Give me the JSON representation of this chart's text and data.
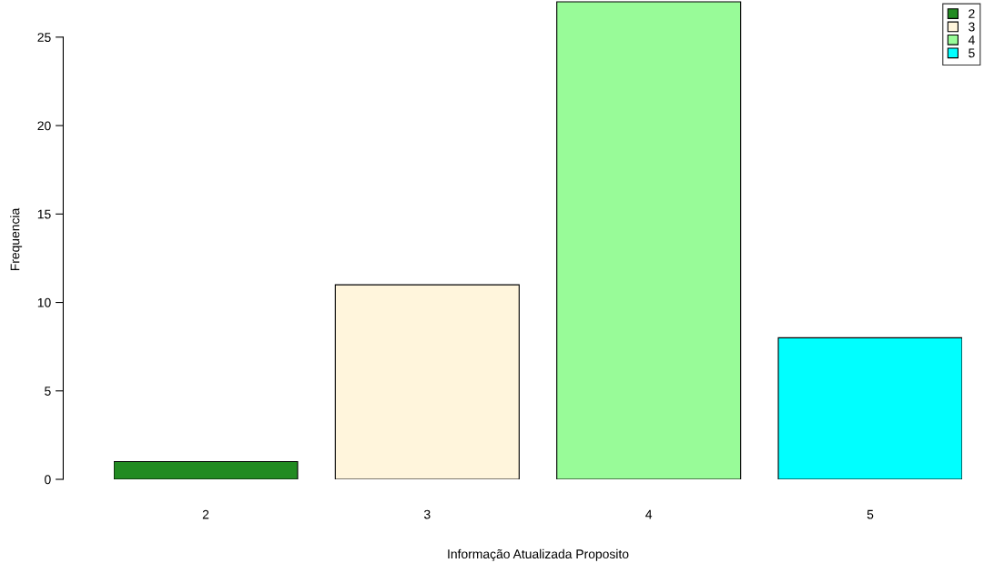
{
  "chart_data": {
    "type": "bar",
    "xlabel": "Informação Atualizada Proposito",
    "ylabel": "Frequencia",
    "categories": [
      "2",
      "3",
      "4",
      "5"
    ],
    "series": [
      {
        "name": "2",
        "color": "#228b22",
        "values": [
          1,
          null,
          null,
          null
        ]
      },
      {
        "name": "3",
        "color": "#fff5dc",
        "values": [
          null,
          11,
          null,
          null
        ]
      },
      {
        "name": "4",
        "color": "#98fb98",
        "values": [
          null,
          null,
          27,
          null
        ]
      },
      {
        "name": "5",
        "color": "#00ffff",
        "values": [
          null,
          null,
          null,
          8
        ]
      }
    ],
    "ylim": [
      0,
      27.1
    ],
    "yticks": [
      0,
      5,
      10,
      15,
      20,
      25
    ],
    "grid": false,
    "legend": "top right"
  }
}
